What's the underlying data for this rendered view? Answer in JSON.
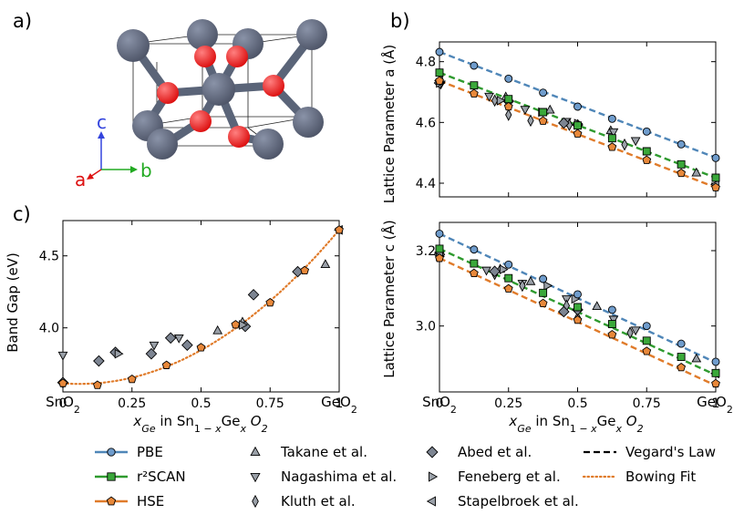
{
  "panel_labels": {
    "a": "a)",
    "b": "b)",
    "c": "c)"
  },
  "axes_labels": {
    "c": "c",
    "a": "a",
    "b": "b"
  },
  "colors": {
    "PBE_line": "#4f86b8",
    "PBE_fill": "#6f9ccc",
    "r2SCAN_line": "#2e9a2e",
    "r2SCAN_fill": "#3aa83a",
    "HSE_line": "#e07b2a",
    "HSE_fill": "#e8883a",
    "expt": "#9aa0a8",
    "abed": "#7d8592",
    "Sn": "#4f5669",
    "O": "#dd1111",
    "bowing": "#e07b2a",
    "axis_c": "#3344dd",
    "axis_a": "#dd1111",
    "axis_b": "#22aa22"
  },
  "xaxis": {
    "ticks": [
      "0",
      "0.25",
      "0.5",
      "0.75",
      "1"
    ],
    "end_left": "SnO2",
    "end_right": "GeO2",
    "label": "x_Ge in Sn1−xGexO2"
  },
  "legend": [
    {
      "key": "PBE",
      "label": "PBE",
      "kind": "calc",
      "color": "PBE"
    },
    {
      "key": "r2SCAN",
      "label": "r²SCAN",
      "kind": "calc",
      "color": "r2SCAN"
    },
    {
      "key": "HSE",
      "label": "HSE",
      "kind": "calc",
      "color": "HSE"
    },
    {
      "key": "takane",
      "label": "Takane et al.",
      "kind": "marker",
      "marker": "tri-up"
    },
    {
      "key": "nagashima",
      "label": "Nagashima et al.",
      "kind": "marker",
      "marker": "tri-down"
    },
    {
      "key": "kluth",
      "label": "Kluth et al.",
      "kind": "marker",
      "marker": "thin-diamond"
    },
    {
      "key": "abed",
      "label": "Abed et al.",
      "kind": "marker",
      "marker": "diamond"
    },
    {
      "key": "feneberg",
      "label": "Feneberg et al.",
      "kind": "marker",
      "marker": "tri-right"
    },
    {
      "key": "stapelbroek",
      "label": "Stapelbroek et al.",
      "kind": "marker",
      "marker": "tri-left"
    },
    {
      "key": "vegard",
      "label": "Vegard's Law",
      "kind": "dash"
    },
    {
      "key": "bowing",
      "label": "Bowing Fit",
      "kind": "dot"
    }
  ],
  "chart_data": [
    {
      "id": "lattice_a",
      "type": "scatter",
      "ylabel": "Lattice Parameter a (Å)",
      "xlim": [
        0,
        1
      ],
      "ylim": [
        4.355,
        4.865
      ],
      "yticks": [
        4.4,
        4.6,
        4.8
      ],
      "x": [
        0,
        0.125,
        0.25,
        0.375,
        0.5,
        0.625,
        0.75,
        0.875,
        1
      ],
      "series": [
        {
          "name": "PBE",
          "values": [
            4.832,
            4.787,
            4.744,
            4.698,
            4.652,
            4.612,
            4.57,
            4.528,
            4.483
          ],
          "vegard": [
            4.832,
            4.484
          ]
        },
        {
          "name": "r2SCAN",
          "values": [
            4.764,
            4.722,
            4.677,
            4.634,
            4.59,
            4.548,
            4.505,
            4.462,
            4.418
          ],
          "vegard": [
            4.764,
            4.418
          ]
        },
        {
          "name": "HSE",
          "values": [
            4.737,
            4.695,
            4.652,
            4.605,
            4.563,
            4.519,
            4.476,
            4.433,
            4.386
          ],
          "vegard": [
            4.737,
            4.386
          ]
        }
      ],
      "experiment": [
        {
          "name": "takane",
          "points": [
            [
              0.24,
              4.684
            ],
            [
              0.4,
              4.641
            ],
            [
              0.62,
              4.573
            ],
            [
              0.93,
              4.434
            ]
          ]
        },
        {
          "name": "nagashima",
          "points": [
            [
              0.005,
              4.726
            ],
            [
              0.18,
              4.686
            ],
            [
              0.31,
              4.643
            ],
            [
              0.46,
              4.603
            ],
            [
              0.63,
              4.569
            ],
            [
              0.71,
              4.54
            ]
          ]
        },
        {
          "name": "kluth",
          "points": [
            [
              0.2,
              4.672
            ],
            [
              0.25,
              4.625
            ],
            [
              0.33,
              4.606
            ],
            [
              0.47,
              4.592
            ],
            [
              0.67,
              4.527
            ]
          ]
        },
        {
          "name": "abed",
          "points": [
            [
              0.0,
              4.73
            ],
            [
              0.25,
              4.67
            ],
            [
              0.45,
              4.598
            ],
            [
              0.5,
              4.592
            ]
          ]
        },
        {
          "name": "feneberg",
          "points": [
            [
              0.0,
              4.73
            ],
            [
              0.22,
              4.672
            ],
            [
              0.37,
              4.634
            ],
            [
              0.5,
              4.596
            ]
          ]
        },
        {
          "name": "stapelbroek",
          "points": [
            [
              0.0,
              4.738
            ],
            [
              1.0,
              4.396
            ]
          ]
        }
      ]
    },
    {
      "id": "lattice_c",
      "type": "scatter",
      "ylabel": "Lattice Parameter c (Å)",
      "xlim": [
        0,
        1
      ],
      "ylim": [
        2.825,
        3.275
      ],
      "yticks": [
        3.0,
        3.2
      ],
      "x": [
        0,
        0.125,
        0.25,
        0.375,
        0.5,
        0.625,
        0.75,
        0.875,
        1
      ],
      "series": [
        {
          "name": "PBE",
          "values": [
            3.245,
            3.203,
            3.163,
            3.125,
            3.084,
            3.043,
            3.0,
            2.953,
            2.905
          ],
          "vegard": [
            3.245,
            2.903
          ]
        },
        {
          "name": "r2SCAN",
          "values": [
            3.205,
            3.166,
            3.127,
            3.088,
            3.05,
            3.005,
            2.961,
            2.918,
            2.875
          ],
          "vegard": [
            3.205,
            2.87
          ]
        },
        {
          "name": "HSE",
          "values": [
            3.18,
            3.14,
            3.099,
            3.06,
            3.016,
            2.977,
            2.933,
            2.89,
            2.847
          ],
          "vegard": [
            3.18,
            2.842
          ]
        }
      ],
      "experiment": [
        {
          "name": "takane",
          "points": [
            [
              0.22,
              3.151
            ],
            [
              0.33,
              3.118
            ],
            [
              0.57,
              3.052
            ],
            [
              0.93,
              2.913
            ]
          ]
        },
        {
          "name": "nagashima",
          "points": [
            [
              0.0,
              3.188
            ],
            [
              0.17,
              3.148
            ],
            [
              0.3,
              3.113
            ],
            [
              0.46,
              3.072
            ],
            [
              0.63,
              3.018
            ],
            [
              0.71,
              2.989
            ]
          ]
        },
        {
          "name": "kluth",
          "points": [
            [
              0.2,
              3.138
            ],
            [
              0.3,
              3.107
            ],
            [
              0.46,
              3.054
            ],
            [
              0.5,
              3.022
            ],
            [
              0.69,
              2.982
            ]
          ]
        },
        {
          "name": "abed",
          "points": [
            [
              0.0,
              3.19
            ],
            [
              0.2,
              3.145
            ],
            [
              0.45,
              3.038
            ],
            [
              0.5,
              3.043
            ]
          ]
        },
        {
          "name": "feneberg",
          "points": [
            [
              0.0,
              3.185
            ],
            [
              0.23,
              3.15
            ],
            [
              0.39,
              3.107
            ],
            [
              0.49,
              3.072
            ]
          ]
        },
        {
          "name": "stapelbroek",
          "points": [
            [
              0.0,
              3.195
            ],
            [
              1.0,
              2.874
            ]
          ]
        }
      ]
    },
    {
      "id": "band_gap",
      "type": "scatter",
      "ylabel": "Band Gap (eV)",
      "xlim": [
        0,
        1
      ],
      "ylim": [
        3.555,
        4.745
      ],
      "yticks": [
        4.0,
        4.5
      ],
      "series": [
        {
          "name": "HSE",
          "x": [
            0,
            0.125,
            0.25,
            0.375,
            0.5,
            0.625,
            0.75,
            0.875,
            1
          ],
          "values": [
            3.615,
            3.602,
            3.643,
            3.74,
            3.863,
            4.022,
            4.175,
            4.398,
            4.68
          ]
        }
      ],
      "bowing_fit": {
        "Eg_SnO2": 3.615,
        "Eg_GeO2": 4.68,
        "b": 1.21
      },
      "experiment": [
        {
          "name": "takane",
          "points": [
            [
              0.56,
              3.98
            ],
            [
              0.65,
              4.04
            ],
            [
              0.95,
              4.44
            ]
          ]
        },
        {
          "name": "nagashima",
          "points": [
            [
              0.0,
              3.81
            ],
            [
              0.33,
              3.88
            ],
            [
              0.42,
              3.93
            ]
          ]
        },
        {
          "name": "abed",
          "points": [
            [
              0.0,
              3.62
            ],
            [
              0.13,
              3.77
            ],
            [
              0.19,
              3.83
            ],
            [
              0.32,
              3.82
            ],
            [
              0.39,
              3.93
            ],
            [
              0.45,
              3.88
            ],
            [
              0.66,
              4.01
            ],
            [
              0.69,
              4.23
            ],
            [
              0.85,
              4.39
            ]
          ]
        },
        {
          "name": "feneberg",
          "points": [
            [
              0.2,
              3.82
            ],
            [
              0.65,
              4.02
            ]
          ]
        },
        {
          "name": "stapelbroek",
          "points": [
            [
              1.0,
              4.68
            ]
          ]
        }
      ]
    }
  ]
}
